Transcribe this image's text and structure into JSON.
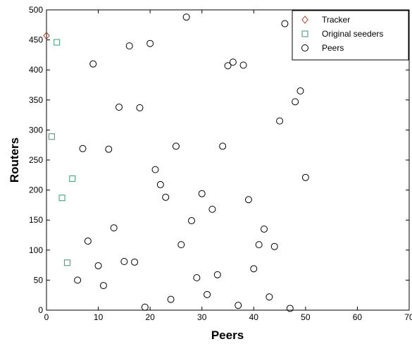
{
  "chart_data": {
    "type": "scatter",
    "x_label": "Peers",
    "y_label": "Routers",
    "xlim": [
      0,
      70
    ],
    "xticks": [
      0,
      10,
      20,
      30,
      40,
      50,
      60,
      70
    ],
    "ylim": [
      0,
      500
    ],
    "yticks": [
      0,
      50,
      100,
      150,
      200,
      250,
      300,
      350,
      400,
      450,
      500
    ],
    "legend": "top-right",
    "grid": false,
    "series": [
      {
        "name": "Tracker",
        "color": "#a0402a",
        "marker": "diamond",
        "x": [
          0
        ],
        "values": [
          457
        ]
      },
      {
        "name": "Original seeders",
        "color": "#3a9a70",
        "marker": "square",
        "x": [
          2,
          1,
          5,
          3,
          4
        ],
        "values": [
          446,
          289,
          219,
          187,
          79
        ]
      },
      {
        "name": "Peers",
        "color": "#000000",
        "marker": "circle",
        "x": [
          6,
          7,
          8,
          9,
          10,
          11,
          12,
          13,
          14,
          15,
          16,
          17,
          18,
          19,
          20,
          21,
          22,
          23,
          24,
          25,
          26,
          27,
          28,
          29,
          30,
          31,
          32,
          33,
          34,
          35,
          36,
          37,
          38,
          39,
          40,
          41,
          42,
          43,
          44,
          45,
          46,
          47,
          48,
          49,
          50
        ],
        "values": [
          50,
          269,
          115,
          410,
          74,
          41,
          268,
          137,
          338,
          81,
          440,
          80,
          337,
          5,
          444,
          234,
          209,
          188,
          18,
          273,
          109,
          488,
          149,
          54,
          194,
          26,
          168,
          59,
          273,
          407,
          413,
          8,
          408,
          184,
          69,
          109,
          135,
          22,
          106,
          315,
          477,
          3,
          347,
          365,
          221
        ]
      }
    ]
  }
}
